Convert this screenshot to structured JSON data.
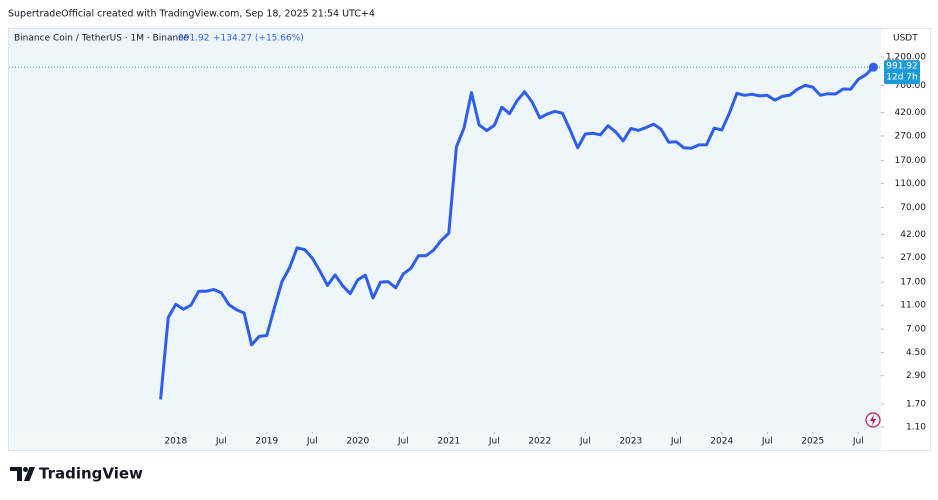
{
  "header": {
    "attribution": "SupertradeOfficial created with TradingView.com, Sep 18, 2025 21:54 UTC+4"
  },
  "chart_data": {
    "type": "line",
    "title": "Binance Coin / TetherUS · 1M · Binance",
    "change_label": "+134.27 (+15.66%)",
    "currency": "USDT",
    "countdown": "12d 7h",
    "color": "#2f5fea",
    "log_scale": true,
    "grid": false,
    "x": [
      "2017-11",
      "2017-12",
      "2018-01",
      "2018-02",
      "2018-03",
      "2018-04",
      "2018-05",
      "2018-06",
      "2018-07",
      "2018-08",
      "2018-09",
      "2018-10",
      "2018-11",
      "2018-12",
      "2019-01",
      "2019-02",
      "2019-03",
      "2019-04",
      "2019-05",
      "2019-06",
      "2019-07",
      "2019-08",
      "2019-09",
      "2019-10",
      "2019-11",
      "2019-12",
      "2020-01",
      "2020-02",
      "2020-03",
      "2020-04",
      "2020-05",
      "2020-06",
      "2020-07",
      "2020-08",
      "2020-09",
      "2020-10",
      "2020-11",
      "2020-12",
      "2021-01",
      "2021-02",
      "2021-03",
      "2021-04",
      "2021-05",
      "2021-06",
      "2021-07",
      "2021-08",
      "2021-09",
      "2021-10",
      "2021-11",
      "2021-12",
      "2022-01",
      "2022-02",
      "2022-03",
      "2022-04",
      "2022-05",
      "2022-06",
      "2022-07",
      "2022-08",
      "2022-09",
      "2022-10",
      "2022-11",
      "2022-12",
      "2023-01",
      "2023-02",
      "2023-03",
      "2023-04",
      "2023-05",
      "2023-06",
      "2023-07",
      "2023-08",
      "2023-09",
      "2023-10",
      "2023-11",
      "2023-12",
      "2024-01",
      "2024-02",
      "2024-03",
      "2024-04",
      "2024-05",
      "2024-06",
      "2024-07",
      "2024-08",
      "2024-09",
      "2024-10",
      "2024-11",
      "2024-12",
      "2025-01",
      "2025-02",
      "2025-03",
      "2025-04",
      "2025-05",
      "2025-06",
      "2025-07",
      "2025-08",
      "2025-09"
    ],
    "values": [
      1.9,
      8.7,
      11.2,
      10.2,
      11.0,
      14.3,
      14.3,
      14.8,
      13.9,
      11.1,
      10.1,
      9.5,
      5.2,
      6.1,
      6.2,
      10.5,
      17.2,
      22.4,
      32.5,
      31.5,
      26.8,
      21.0,
      16.0,
      19.5,
      15.9,
      13.7,
      17.8,
      19.4,
      12.6,
      17.0,
      17.2,
      15.3,
      19.9,
      22.1,
      28.1,
      28.0,
      31.2,
      37.4,
      42.9,
      220,
      313,
      613,
      333,
      299,
      330,
      465,
      411,
      525,
      623,
      512,
      380,
      410,
      430,
      415,
      303,
      216,
      280,
      284,
      276,
      327,
      292,
      246,
      311,
      300,
      316,
      338,
      307,
      240,
      242,
      216,
      214,
      228,
      229,
      313,
      302,
      414,
      605,
      582,
      594,
      576,
      582,
      532,
      571,
      585,
      655,
      702,
      680,
      582,
      601,
      597,
      656,
      654,
      788,
      857.65,
      991.92
    ],
    "xlim": [
      "2016-03",
      "2025-10"
    ],
    "xticks": [
      {
        "value": "2018-01",
        "label": "2018"
      },
      {
        "value": "2018-07",
        "label": "Jul"
      },
      {
        "value": "2019-01",
        "label": "2019"
      },
      {
        "value": "2019-07",
        "label": "Jul"
      },
      {
        "value": "2020-01",
        "label": "2020"
      },
      {
        "value": "2020-07",
        "label": "Jul"
      },
      {
        "value": "2021-01",
        "label": "2021"
      },
      {
        "value": "2021-07",
        "label": "Jul"
      },
      {
        "value": "2022-01",
        "label": "2022"
      },
      {
        "value": "2022-07",
        "label": "Jul"
      },
      {
        "value": "2023-01",
        "label": "2023"
      },
      {
        "value": "2023-07",
        "label": "Jul"
      },
      {
        "value": "2024-01",
        "label": "2024"
      },
      {
        "value": "2024-07",
        "label": "Jul"
      },
      {
        "value": "2025-01",
        "label": "2025"
      },
      {
        "value": "2025-07",
        "label": "Jul"
      }
    ],
    "ylim": [
      1,
      2080
    ],
    "yticks": [
      {
        "value": 1200,
        "label": "1,200.00"
      },
      {
        "value": 700,
        "label": "700.00"
      },
      {
        "value": 420,
        "label": "420.00"
      },
      {
        "value": 270,
        "label": "270.00"
      },
      {
        "value": 170,
        "label": "170.00"
      },
      {
        "value": 110,
        "label": "110.00"
      },
      {
        "value": 70,
        "label": "70.00"
      },
      {
        "value": 42,
        "label": "42.00"
      },
      {
        "value": 27,
        "label": "27.00"
      },
      {
        "value": 17,
        "label": "17.00"
      },
      {
        "value": 11,
        "label": "11.00"
      },
      {
        "value": 7,
        "label": "7.00"
      },
      {
        "value": 4.5,
        "label": "4.50"
      },
      {
        "value": 2.9,
        "label": "2.90"
      },
      {
        "value": 1.7,
        "label": "1.70"
      },
      {
        "value": 1.1,
        "label": "1.10"
      }
    ]
  },
  "footer": {
    "brand": "TradingView"
  }
}
